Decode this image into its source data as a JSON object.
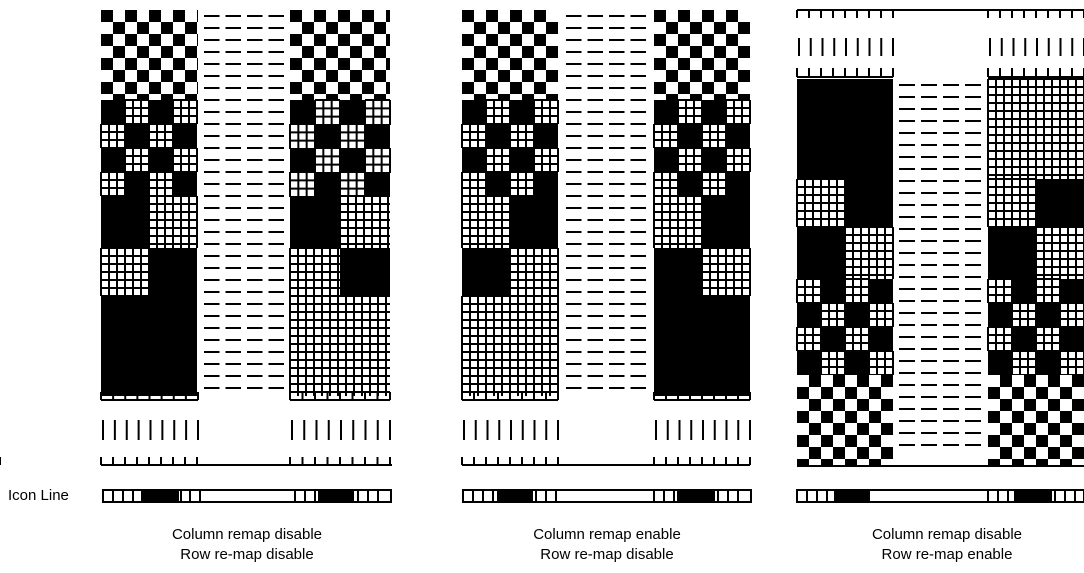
{
  "icon_line_label": "Icon Line",
  "panels": [
    {
      "caption_line1": "Column remap disable",
      "caption_line2": "Row re-map disable"
    },
    {
      "caption_line1": "Column remap enable",
      "caption_line2": "Row re-map disable"
    },
    {
      "caption_line1": "Column remap disable",
      "caption_line2": "Row re-map enable"
    }
  ]
}
